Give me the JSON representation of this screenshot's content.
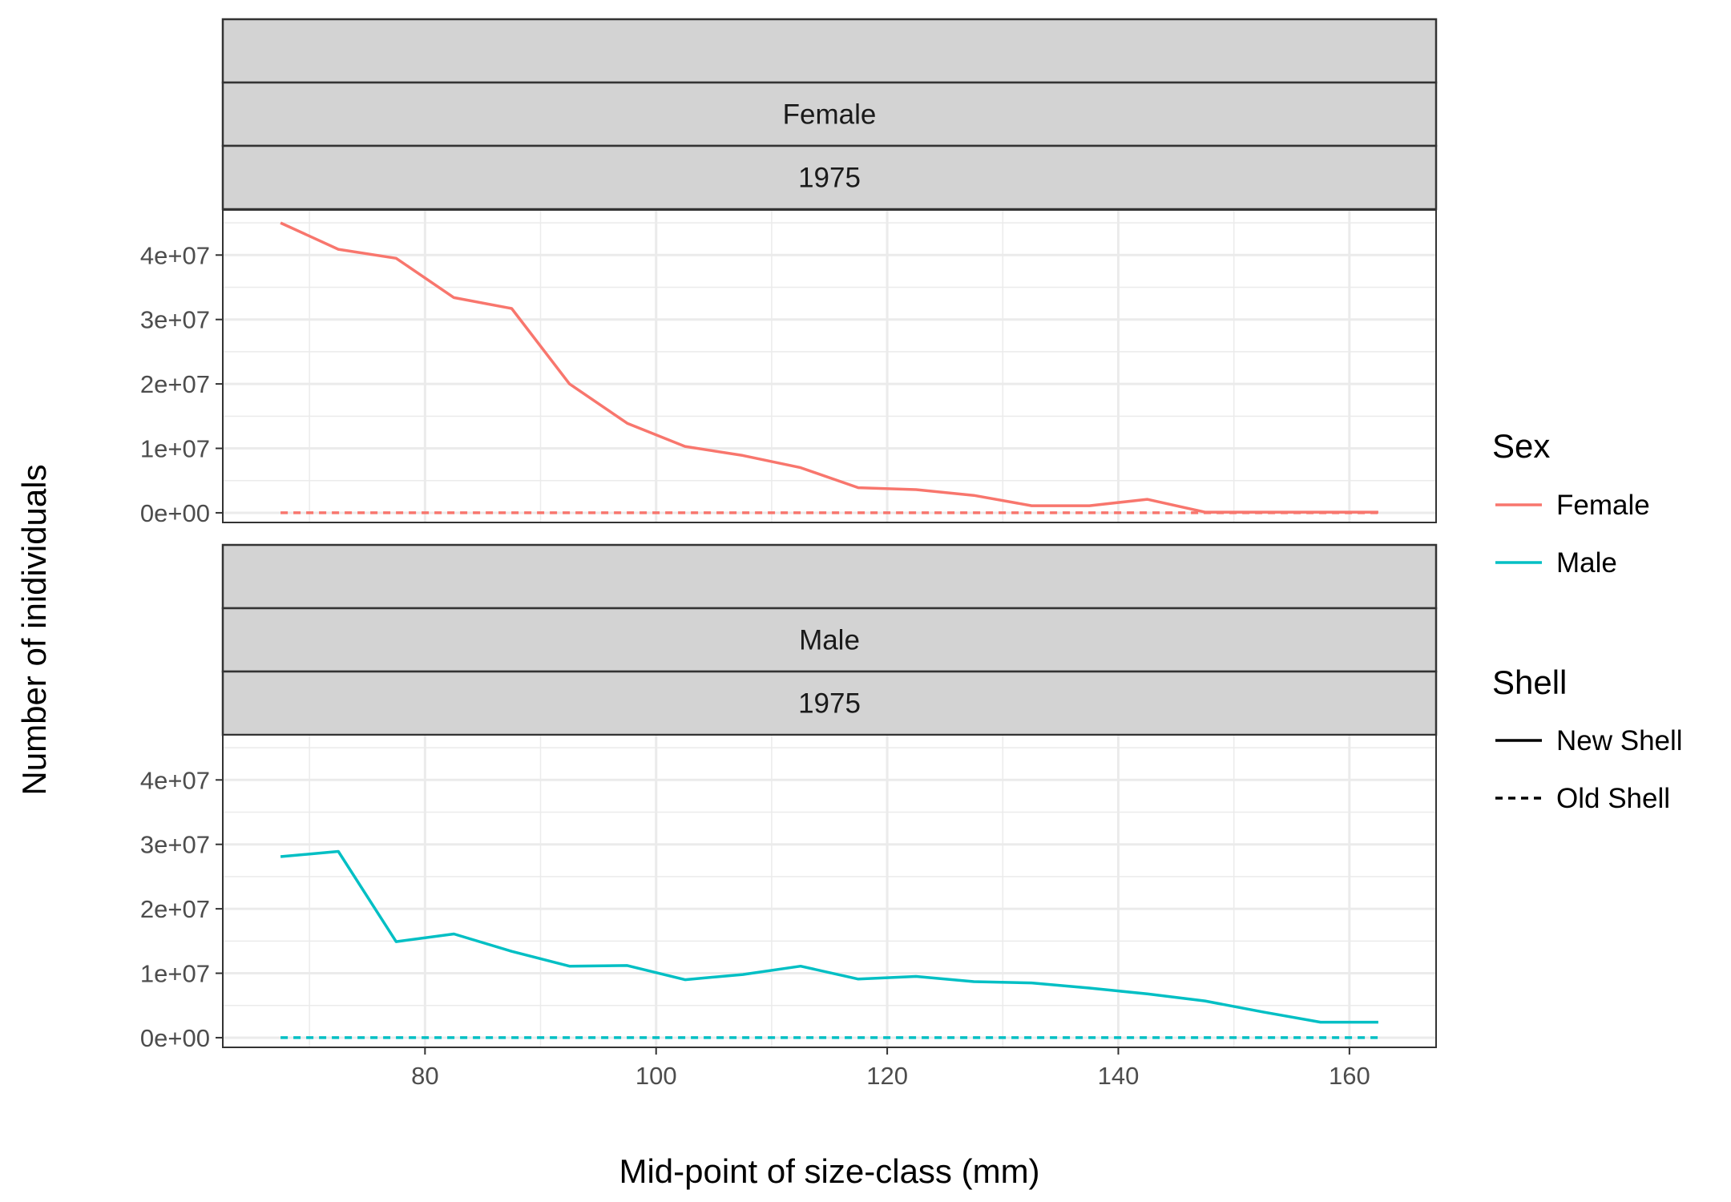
{
  "chart_data": {
    "type": "line",
    "xlabel": "Mid-point of size-class (mm)",
    "ylabel": "Number of inidividuals",
    "xlim": [
      62.5,
      167.5
    ],
    "ylim": [
      -1500000,
      47000000
    ],
    "x_ticks": [
      80,
      100,
      120,
      140,
      160
    ],
    "x_tick_labels": [
      "80",
      "100",
      "120",
      "140",
      "160"
    ],
    "y_ticks": [
      0,
      10000000,
      20000000,
      30000000,
      40000000
    ],
    "y_tick_labels": [
      "0e+00",
      "1e+07",
      "2e+07",
      "3e+07",
      "4e+07"
    ],
    "x": [
      67.5,
      72.5,
      77.5,
      82.5,
      87.5,
      92.5,
      97.5,
      102.5,
      107.5,
      112.5,
      117.5,
      122.5,
      127.5,
      132.5,
      137.5,
      142.5,
      147.5,
      152.5,
      157.5,
      162.5
    ],
    "panels": [
      {
        "strips": [
          "",
          "Female",
          "1975"
        ],
        "series": [
          {
            "sex": "Female",
            "shell": "New Shell",
            "values": [
              45000000,
              40900000,
              39500000,
              33400000,
              31700000,
              20000000,
              13900000,
              10300000,
              8900000,
              7000000,
              3900000,
              3600000,
              2700000,
              1100000,
              1100000,
              2100000,
              100000,
              100000,
              100000,
              100000
            ]
          },
          {
            "sex": "Female",
            "shell": "Old Shell",
            "values": [
              0,
              0,
              0,
              0,
              0,
              0,
              0,
              0,
              0,
              0,
              0,
              0,
              0,
              0,
              0,
              0,
              0,
              0,
              0,
              0
            ]
          }
        ]
      },
      {
        "strips": [
          "",
          "Male",
          "1975"
        ],
        "series": [
          {
            "sex": "Male",
            "shell": "New Shell",
            "values": [
              28100000,
              28900000,
              14900000,
              16100000,
              13400000,
              11100000,
              11200000,
              9000000,
              9800000,
              11100000,
              9100000,
              9500000,
              8700000,
              8500000,
              7700000,
              6800000,
              5700000,
              4000000,
              2400000,
              2400000
            ]
          },
          {
            "sex": "Male",
            "shell": "Old Shell",
            "values": [
              0,
              0,
              0,
              0,
              0,
              0,
              0,
              0,
              0,
              0,
              0,
              0,
              0,
              0,
              0,
              0,
              0,
              0,
              0,
              0
            ]
          }
        ]
      }
    ],
    "legends": [
      {
        "title": "Sex",
        "entries": [
          {
            "label": "Female",
            "color": "#F8766D",
            "dash": "solid"
          },
          {
            "label": "Male",
            "color": "#00BFC4",
            "dash": "solid"
          }
        ]
      },
      {
        "title": "Shell",
        "entries": [
          {
            "label": "New Shell",
            "color": "#000000",
            "dash": "solid"
          },
          {
            "label": "Old Shell",
            "color": "#000000",
            "dash": "dashed"
          }
        ]
      }
    ],
    "colors": {
      "Female": "#F8766D",
      "Male": "#00BFC4"
    },
    "legend_position": "right",
    "grid": true
  }
}
